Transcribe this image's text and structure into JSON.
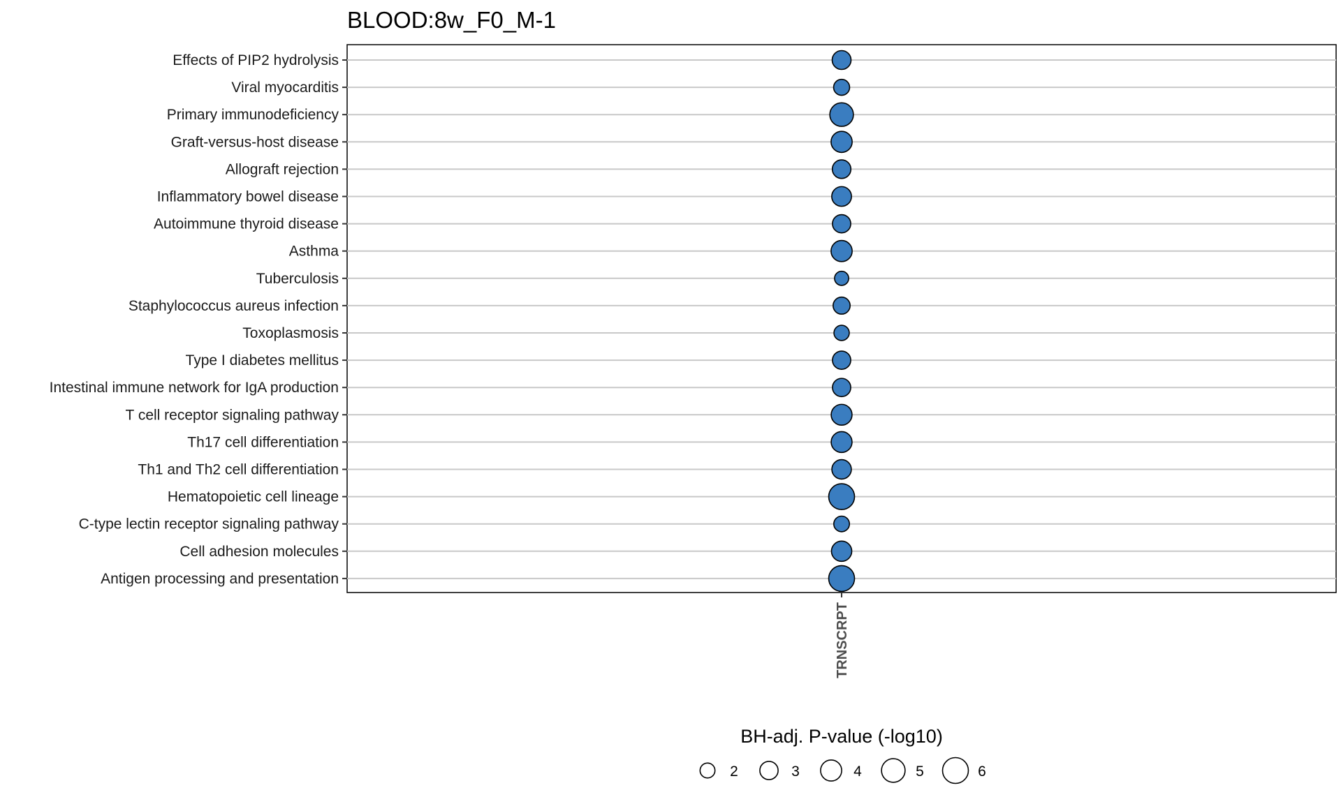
{
  "chart_data": {
    "type": "scatter",
    "title": "BLOOD:8w_F0_M-1",
    "x_categories": [
      "TRNSCRPT"
    ],
    "categories": [
      "Effects of PIP2 hydrolysis",
      "Viral myocarditis",
      "Primary immunodeficiency",
      "Graft-versus-host disease",
      "Allograft rejection",
      "Inflammatory bowel disease",
      "Autoimmune thyroid disease",
      "Asthma",
      "Tuberculosis",
      "Staphylococcus aureus infection",
      "Toxoplasmosis",
      "Type I diabetes mellitus",
      "Intestinal immune network for IgA production",
      "T cell receptor signaling pathway",
      "Th17 cell differentiation",
      "Th1 and Th2 cell differentiation",
      "Hematopoietic cell lineage",
      "C-type lectin receptor signaling pathway",
      "Cell adhesion molecules",
      "Antigen processing and presentation"
    ],
    "values": [
      3.2,
      2.3,
      5.0,
      4.0,
      3.1,
      3.5,
      3.0,
      4.0,
      1.8,
      2.6,
      2.1,
      3.0,
      3.0,
      3.9,
      3.9,
      3.4,
      6.0,
      2.2,
      3.7,
      6.0
    ],
    "point_color": "#3a7dc0",
    "point_stroke": "#000000",
    "size_legend": {
      "title": "BH-adj. P-value (-log10)",
      "values": [
        2,
        3,
        4,
        5,
        6
      ],
      "labels": [
        "2",
        "3",
        "4",
        "5",
        "6"
      ],
      "placement": "bottom"
    },
    "grid": true
  }
}
